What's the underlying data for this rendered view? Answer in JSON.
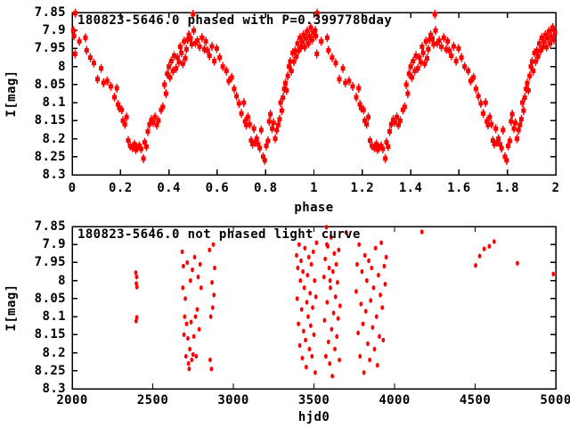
{
  "page": {
    "background": "#ffffff",
    "text_color": "#000000"
  },
  "chart_data": [
    {
      "id": "phased-light-curve",
      "type": "scatter",
      "title": "180823-5646.0 phased with P=0.3997780day",
      "xlabel": "phase",
      "ylabel": "I[mag]",
      "xlim": [
        0,
        2
      ],
      "ylim": [
        7.85,
        8.3
      ],
      "y_inverted_magnitude_axis": true,
      "grid": false,
      "legend": "none",
      "marker": "filled-square-with-errorbar",
      "marker_color": "#ff0000",
      "xticks": [
        0,
        0.2,
        0.4,
        0.6,
        0.8,
        1,
        1.2,
        1.4,
        1.6,
        1.8,
        2
      ],
      "xtick_labels": [
        "0",
        "0.2",
        "0.4",
        "0.6",
        "0.8",
        "1",
        "1.2",
        "1.4",
        "1.6",
        "1.8",
        "2"
      ],
      "yticks": [
        7.85,
        7.9,
        7.95,
        8,
        8.05,
        8.1,
        8.15,
        8.2,
        8.25,
        8.3
      ],
      "ytick_labels": [
        "7.85",
        "7.9",
        "7.95",
        "8",
        "8.05",
        "8.1",
        "8.15",
        "8.2",
        "8.25",
        "8.3"
      ],
      "duplicate_x_offset": 1.0,
      "points": [
        [
          0.005,
          7.9
        ],
        [
          0.008,
          7.915
        ],
        [
          0.012,
          7.965
        ],
        [
          0.013,
          7.852
        ],
        [
          0.03,
          7.93
        ],
        [
          0.055,
          7.92
        ],
        [
          0.06,
          7.955
        ],
        [
          0.075,
          7.975
        ],
        [
          0.09,
          7.99
        ],
        [
          0.105,
          8.035
        ],
        [
          0.12,
          8.005
        ],
        [
          0.13,
          8.045
        ],
        [
          0.145,
          8.04
        ],
        [
          0.16,
          8.055
        ],
        [
          0.175,
          8.085
        ],
        [
          0.185,
          8.06
        ],
        [
          0.19,
          8.105
        ],
        [
          0.195,
          8.115
        ],
        [
          0.205,
          8.12
        ],
        [
          0.21,
          8.15
        ],
        [
          0.218,
          8.16
        ],
        [
          0.225,
          8.14
        ],
        [
          0.232,
          8.205
        ],
        [
          0.24,
          8.22
        ],
        [
          0.25,
          8.225
        ],
        [
          0.258,
          8.215
        ],
        [
          0.263,
          8.23
        ],
        [
          0.27,
          8.225
        ],
        [
          0.278,
          8.22
        ],
        [
          0.285,
          8.228
        ],
        [
          0.295,
          8.255
        ],
        [
          0.3,
          8.21
        ],
        [
          0.307,
          8.222
        ],
        [
          0.313,
          8.18
        ],
        [
          0.32,
          8.16
        ],
        [
          0.328,
          8.147
        ],
        [
          0.335,
          8.155
        ],
        [
          0.343,
          8.14
        ],
        [
          0.35,
          8.162
        ],
        [
          0.357,
          8.15
        ],
        [
          0.368,
          8.12
        ],
        [
          0.375,
          8.112
        ],
        [
          0.382,
          8.05
        ],
        [
          0.388,
          8.075
        ],
        [
          0.393,
          8.02
        ],
        [
          0.4,
          8.0
        ],
        [
          0.405,
          8.03
        ],
        [
          0.41,
          7.985
        ],
        [
          0.417,
          8.012
        ],
        [
          0.422,
          7.97
        ],
        [
          0.43,
          8.005
        ],
        [
          0.436,
          7.975
        ],
        [
          0.442,
          7.988
        ],
        [
          0.447,
          7.945
        ],
        [
          0.452,
          7.962
        ],
        [
          0.458,
          7.992
        ],
        [
          0.463,
          7.93
        ],
        [
          0.468,
          7.977
        ],
        [
          0.473,
          7.952
        ],
        [
          0.478,
          7.925
        ],
        [
          0.483,
          7.912
        ],
        [
          0.49,
          7.922
        ],
        [
          0.495,
          7.938
        ],
        [
          0.5,
          7.855
        ],
        [
          0.503,
          7.9
        ],
        [
          0.51,
          7.935
        ],
        [
          0.518,
          7.928
        ],
        [
          0.527,
          7.945
        ],
        [
          0.537,
          7.92
        ],
        [
          0.547,
          7.952
        ],
        [
          0.553,
          7.93
        ],
        [
          0.56,
          7.956
        ],
        [
          0.568,
          7.97
        ],
        [
          0.578,
          7.944
        ],
        [
          0.588,
          7.985
        ],
        [
          0.598,
          7.95
        ],
        [
          0.61,
          7.975
        ],
        [
          0.623,
          8.0
        ],
        [
          0.638,
          8.012
        ],
        [
          0.648,
          8.04
        ],
        [
          0.66,
          8.03
        ],
        [
          0.67,
          8.062
        ],
        [
          0.68,
          8.082
        ],
        [
          0.69,
          8.102
        ],
        [
          0.7,
          8.13
        ],
        [
          0.71,
          8.1
        ],
        [
          0.715,
          8.152
        ],
        [
          0.72,
          8.162
        ],
        [
          0.727,
          8.14
        ],
        [
          0.734,
          8.16
        ],
        [
          0.74,
          8.205
        ],
        [
          0.746,
          8.215
        ],
        [
          0.752,
          8.172
        ],
        [
          0.757,
          8.21
        ],
        [
          0.763,
          8.2
        ],
        [
          0.77,
          8.216
        ],
        [
          0.776,
          8.226
        ],
        [
          0.782,
          8.176
        ],
        [
          0.79,
          8.25
        ],
        [
          0.797,
          8.26
        ],
        [
          0.803,
          8.22
        ],
        [
          0.81,
          8.206
        ],
        [
          0.815,
          8.152
        ],
        [
          0.82,
          8.132
        ],
        [
          0.827,
          8.172
        ],
        [
          0.833,
          8.156
        ],
        [
          0.84,
          8.2
        ],
        [
          0.846,
          8.176
        ],
        [
          0.852,
          8.162
        ],
        [
          0.858,
          8.146
        ],
        [
          0.862,
          8.1
        ],
        [
          0.867,
          8.122
        ],
        [
          0.872,
          8.086
        ],
        [
          0.877,
          8.062
        ],
        [
          0.882,
          8.046
        ],
        [
          0.887,
          8.066
        ],
        [
          0.892,
          8.026
        ],
        [
          0.897,
          8.0
        ],
        [
          0.902,
          7.986
        ],
        [
          0.907,
          8.012
        ],
        [
          0.912,
          7.962
        ],
        [
          0.917,
          7.986
        ],
        [
          0.922,
          7.956
        ],
        [
          0.927,
          7.972
        ],
        [
          0.932,
          7.936
        ],
        [
          0.937,
          7.956
        ],
        [
          0.942,
          7.92
        ],
        [
          0.947,
          7.946
        ],
        [
          0.952,
          7.932
        ],
        [
          0.957,
          7.912
        ],
        [
          0.962,
          7.946
        ],
        [
          0.967,
          7.922
        ],
        [
          0.972,
          7.902
        ],
        [
          0.977,
          7.936
        ],
        [
          0.982,
          7.916
        ],
        [
          0.987,
          7.892
        ],
        [
          0.992,
          7.926
        ],
        [
          0.997,
          7.906
        ]
      ]
    },
    {
      "id": "unphased-light-curve",
      "type": "scatter",
      "title": "180823-5646.0 not phased light curve",
      "xlabel": "hjd0",
      "ylabel": "I[mag]",
      "xlim": [
        2000,
        5000
      ],
      "ylim": [
        7.85,
        8.3
      ],
      "y_inverted_magnitude_axis": true,
      "grid": false,
      "legend": "none",
      "marker": "small-diamond-dot",
      "marker_color": "#ff0000",
      "xticks": [
        2000,
        2500,
        3000,
        3500,
        4000,
        4500,
        5000
      ],
      "xtick_labels": [
        "2000",
        "2500",
        "3000",
        "3500",
        "4000",
        "4500",
        "5000"
      ],
      "yticks": [
        7.85,
        7.9,
        7.95,
        8,
        8.05,
        8.1,
        8.15,
        8.2,
        8.25,
        8.3
      ],
      "ytick_labels": [
        "7.85",
        "7.9",
        "7.95",
        "8",
        "8.05",
        "8.1",
        "8.15",
        "8.2",
        "8.25",
        "8.3"
      ],
      "points": [
        [
          2395,
          7.978
        ],
        [
          2400,
          7.99
        ],
        [
          2398,
          8.008
        ],
        [
          2402,
          8.018
        ],
        [
          2401,
          8.102
        ],
        [
          2397,
          8.112
        ],
        [
          2683,
          7.92
        ],
        [
          2687,
          8.02
        ],
        [
          2690,
          7.96
        ],
        [
          2694,
          8.15
        ],
        [
          2698,
          8.1
        ],
        [
          2702,
          8.05
        ],
        [
          2706,
          8.21
        ],
        [
          2710,
          8.12
        ],
        [
          2714,
          7.95
        ],
        [
          2718,
          8.16
        ],
        [
          2722,
          8.23
        ],
        [
          2726,
          8.245
        ],
        [
          2730,
          8.19
        ],
        [
          2734,
          8.0
        ],
        [
          2738,
          8.115
        ],
        [
          2742,
          8.22
        ],
        [
          2746,
          7.97
        ],
        [
          2750,
          8.205
        ],
        [
          2755,
          8.155
        ],
        [
          2760,
          7.935
        ],
        [
          2765,
          8.1
        ],
        [
          2770,
          8.21
        ],
        [
          2776,
          8.08
        ],
        [
          2782,
          7.99
        ],
        [
          2788,
          8.135
        ],
        [
          2794,
          7.955
        ],
        [
          2800,
          8.02
        ],
        [
          2852,
          7.915
        ],
        [
          2856,
          8.22
        ],
        [
          2860,
          8.1
        ],
        [
          2864,
          8.245
        ],
        [
          2868,
          8.005
        ],
        [
          2872,
          8.075
        ],
        [
          2876,
          7.9
        ],
        [
          2880,
          8.04
        ],
        [
          2884,
          7.965
        ],
        [
          3392,
          7.93
        ],
        [
          3396,
          8.05
        ],
        [
          3400,
          7.965
        ],
        [
          3404,
          8.12
        ],
        [
          3408,
          7.9
        ],
        [
          3412,
          8.18
        ],
        [
          3416,
          8.0
        ],
        [
          3420,
          7.945
        ],
        [
          3424,
          8.08
        ],
        [
          3428,
          8.215
        ],
        [
          3432,
          7.975
        ],
        [
          3436,
          8.14
        ],
        [
          3440,
          8.02
        ],
        [
          3444,
          7.91
        ],
        [
          3448,
          8.165
        ],
        [
          3452,
          8.24
        ],
        [
          3456,
          8.06
        ],
        [
          3460,
          7.985
        ],
        [
          3464,
          8.1
        ],
        [
          3468,
          7.935
        ],
        [
          3472,
          8.19
        ],
        [
          3476,
          8.035
        ],
        [
          3480,
          8.125
        ],
        [
          3484,
          7.955
        ],
        [
          3488,
          8.21
        ],
        [
          3492,
          8.075
        ],
        [
          3496,
          7.92
        ],
        [
          3500,
          8.15
        ],
        [
          3504,
          8.0
        ],
        [
          3508,
          8.255
        ],
        [
          3512,
          8.045
        ],
        [
          3516,
          7.895
        ],
        [
          3562,
          7.99
        ],
        [
          3566,
          8.11
        ],
        [
          3570,
          7.94
        ],
        [
          3574,
          8.21
        ],
        [
          3578,
          7.852
        ],
        [
          3582,
          8.06
        ],
        [
          3586,
          7.905
        ],
        [
          3590,
          8.17
        ],
        [
          3594,
          7.965
        ],
        [
          3598,
          8.23
        ],
        [
          3602,
          8.02
        ],
        [
          3606,
          7.88
        ],
        [
          3610,
          8.135
        ],
        [
          3614,
          8.265
        ],
        [
          3618,
          7.975
        ],
        [
          3622,
          8.09
        ],
        [
          3626,
          7.925
        ],
        [
          3630,
          8.19
        ],
        [
          3634,
          8.045
        ],
        [
          3638,
          7.955
        ],
        [
          3642,
          8.155
        ],
        [
          3646,
          8.005
        ],
        [
          3650,
          8.105
        ],
        [
          3654,
          7.915
        ],
        [
          3658,
          8.22
        ],
        [
          3662,
          8.07
        ],
        [
          3580,
          7.9
        ],
        [
          3600,
          8.0
        ],
        [
          3700,
          7.867
        ],
        [
          3762,
          8.03
        ],
        [
          3768,
          7.955
        ],
        [
          3774,
          8.145
        ],
        [
          3780,
          7.9
        ],
        [
          3786,
          8.21
        ],
        [
          3792,
          8.065
        ],
        [
          3798,
          7.975
        ],
        [
          3804,
          8.12
        ],
        [
          3810,
          8.255
        ],
        [
          3816,
          7.93
        ],
        [
          3822,
          8.085
        ],
        [
          3828,
          8.0
        ],
        [
          3834,
          8.175
        ],
        [
          3840,
          7.945
        ],
        [
          3846,
          8.22
        ],
        [
          3852,
          8.055
        ],
        [
          3858,
          7.965
        ],
        [
          3864,
          8.13
        ],
        [
          3870,
          8.02
        ],
        [
          3876,
          8.19
        ],
        [
          3882,
          7.91
        ],
        [
          3888,
          8.1
        ],
        [
          3894,
          8.235
        ],
        [
          3900,
          7.985
        ],
        [
          3906,
          8.155
        ],
        [
          3912,
          8.04
        ],
        [
          3918,
          7.895
        ],
        [
          3924,
          8.075
        ],
        [
          3930,
          8.165
        ],
        [
          3936,
          7.96
        ],
        [
          3942,
          8.01
        ],
        [
          3948,
          7.935
        ],
        [
          4170,
          7.865
        ],
        [
          4503,
          7.958
        ],
        [
          4528,
          7.932
        ],
        [
          4556,
          7.912
        ],
        [
          4588,
          7.905
        ],
        [
          4618,
          7.892
        ],
        [
          4762,
          7.952
        ],
        [
          4985,
          7.982
        ]
      ]
    }
  ]
}
